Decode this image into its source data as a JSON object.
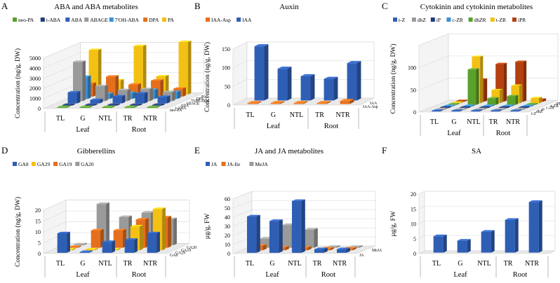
{
  "figure": {
    "panels": [
      {
        "letter": "A",
        "title": "ABA and ABA metabolites"
      },
      {
        "letter": "B",
        "title": "Auxin"
      },
      {
        "letter": "C",
        "title": "Cytokinin and cytokinin metabolites"
      },
      {
        "letter": "D",
        "title": "Gibberellins"
      },
      {
        "letter": "E",
        "title": "JA and JA metabolites"
      },
      {
        "letter": "F",
        "title": "SA"
      }
    ],
    "group_labels": {
      "leaf": "Leaf",
      "root": "Root"
    }
  },
  "chart_data": [
    {
      "id": "A",
      "type": "bar3d",
      "title": "ABA and ABA metabolites",
      "ylabel": "Concentration (ng/g, DW)",
      "yticks": [
        "0",
        "1000",
        "2000",
        "3000",
        "4000",
        "5000"
      ],
      "ylim": [
        0,
        5000
      ],
      "categories": [
        "TL",
        "G",
        "NTL",
        "TR",
        "NTR"
      ],
      "groups": [
        {
          "name": "Leaf",
          "categories": [
            "TL",
            "G",
            "NTL"
          ]
        },
        {
          "name": "Root",
          "categories": [
            "TR",
            "NTR"
          ]
        }
      ],
      "series": [
        {
          "name": "neo-PA",
          "color": "#5aa02c",
          "values": [
            30,
            30,
            30,
            30,
            30
          ]
        },
        {
          "name": "t-ABA",
          "color": "#1f3c7a",
          "values": [
            40,
            40,
            40,
            40,
            40
          ]
        },
        {
          "name": "ABA",
          "color": "#2f5fb5",
          "values": [
            1100,
            350,
            700,
            1000,
            650
          ]
        },
        {
          "name": "ABAGE",
          "color": "#9a9a9a",
          "values": [
            3900,
            1500,
            1100,
            1200,
            900
          ]
        },
        {
          "name": "7'OH-ABA",
          "color": "#3d8fd4",
          "values": [
            2200,
            500,
            600,
            900,
            700
          ]
        },
        {
          "name": "DPA",
          "color": "#e56f1c",
          "values": [
            1300,
            2000,
            1200,
            1600,
            800
          ]
        },
        {
          "name": "PA",
          "color": "#f3c014",
          "values": [
            4400,
            1400,
            4800,
            1800,
            5200
          ]
        }
      ],
      "depth_labels": [
        "PA",
        "DPA",
        "7'OH-ABA",
        "ABAGE",
        "ABA",
        "t-ABA",
        "neo-PA"
      ]
    },
    {
      "id": "B",
      "type": "bar3d",
      "title": "Auxin",
      "ylabel": "Concentration (ng/g, DW)",
      "yticks": [
        "0",
        "50",
        "100",
        "150"
      ],
      "ylim": [
        0,
        150
      ],
      "categories": [
        "TL",
        "G",
        "NTL",
        "TR",
        "NTR"
      ],
      "groups": [
        {
          "name": "Leaf",
          "categories": [
            "TL",
            "G",
            "NTL"
          ]
        },
        {
          "name": "Root",
          "categories": [
            "TR",
            "NTR"
          ]
        }
      ],
      "series": [
        {
          "name": "IAA-Asp",
          "color": "#e56f1c",
          "values": [
            0,
            0,
            0,
            0,
            8
          ]
        },
        {
          "name": "IAA",
          "color": "#2f5fb5",
          "values": [
            145,
            85,
            65,
            58,
            100
          ]
        }
      ],
      "depth_labels": [
        "IAA",
        "IAA-Asp"
      ]
    },
    {
      "id": "C",
      "type": "bar3d",
      "title": "Cytokinin and cytokinin metabolites",
      "ylabel": "Concentration (ng/g, DW)",
      "yticks": [
        "0",
        "50",
        "100"
      ],
      "ylim": [
        0,
        150
      ],
      "categories": [
        "TL",
        "G",
        "NTL",
        "TR",
        "NTR"
      ],
      "groups": [
        {
          "name": "Leaf",
          "categories": [
            "TL",
            "G",
            "NTL"
          ]
        },
        {
          "name": "Root",
          "categories": [
            "TR",
            "NTR"
          ]
        }
      ],
      "series": [
        {
          "name": "t-Z",
          "color": "#2f5fb5",
          "values": [
            1,
            1,
            1,
            2,
            2
          ]
        },
        {
          "name": "dhZ",
          "color": "#9a9a9a",
          "values": [
            1,
            1,
            1,
            1,
            1
          ]
        },
        {
          "name": "iP",
          "color": "#1f3c7a",
          "values": [
            1,
            1,
            1,
            2,
            1
          ]
        },
        {
          "name": "c-ZR",
          "color": "#3d8fd4",
          "values": [
            1,
            1,
            2,
            2,
            1
          ]
        },
        {
          "name": "dhZR",
          "color": "#5aa02c",
          "values": [
            1,
            80,
            15,
            20,
            2
          ]
        },
        {
          "name": "t-ZR",
          "color": "#f3c014",
          "values": [
            1,
            105,
            30,
            40,
            12
          ]
        },
        {
          "name": "iPR",
          "color": "#b5400f",
          "values": [
            1,
            50,
            85,
            90,
            5
          ]
        }
      ],
      "depth_labels": [
        "iPR",
        "t-ZR",
        "c-ZR",
        "iP",
        "dhZ",
        "t-Z"
      ]
    },
    {
      "id": "D",
      "type": "bar3d",
      "title": "Gibberellins",
      "ylabel": "Concentration (ng/g, DW)",
      "yticks": [
        "0",
        "5",
        "10",
        "15",
        "20"
      ],
      "ylim": [
        0,
        20
      ],
      "categories": [
        "TL",
        "G",
        "NTL",
        "TR",
        "NTR"
      ],
      "groups": [
        {
          "name": "Leaf",
          "categories": [
            "TL",
            "G",
            "NTL"
          ]
        },
        {
          "name": "Root",
          "categories": [
            "TR",
            "NTR"
          ]
        }
      ],
      "series": [
        {
          "name": "GA8",
          "color": "#2f5fb5",
          "values": [
            9,
            0,
            5,
            6,
            9
          ]
        },
        {
          "name": "GA29",
          "color": "#f3c014",
          "values": [
            0,
            0,
            0,
            11,
            19
          ]
        },
        {
          "name": "GA19",
          "color": "#e56f1c",
          "values": [
            0,
            8,
            8,
            13,
            14
          ]
        },
        {
          "name": "GA20",
          "color": "#9a9a9a",
          "values": [
            0,
            19,
            13,
            15,
            12
          ]
        }
      ],
      "depth_labels": [
        "GA20",
        "GA19",
        "GA29",
        "GA8"
      ]
    },
    {
      "id": "E",
      "type": "bar3d",
      "title": "JA and JA metabolites",
      "ylabel": "µg/g, FW",
      "yticks": [
        "0",
        "10",
        "20",
        "30",
        "40",
        "50",
        "60"
      ],
      "ylim": [
        0,
        60
      ],
      "categories": [
        "TL",
        "G",
        "NTL",
        "TR",
        "NTR"
      ],
      "groups": [
        {
          "name": "Leaf",
          "categories": [
            "TL",
            "G",
            "NTL"
          ]
        },
        {
          "name": "Root",
          "categories": [
            "TR",
            "NTR"
          ]
        }
      ],
      "series": [
        {
          "name": "JA",
          "color": "#2f5fb5",
          "values": [
            40,
            35,
            57,
            4,
            4
          ]
        },
        {
          "name": "JA-Ile",
          "color": "#e56f1c",
          "values": [
            5,
            3,
            3,
            2,
            2
          ]
        },
        {
          "name": "MeJA",
          "color": "#9a9a9a",
          "values": [
            10,
            25,
            20,
            1,
            1
          ]
        }
      ],
      "depth_labels": [
        "MeJA",
        "JA"
      ]
    },
    {
      "id": "F",
      "type": "bar3d",
      "title": "SA",
      "ylabel": "µg/g, FW",
      "yticks": [
        "0",
        "5",
        "10",
        "15",
        "20"
      ],
      "ylim": [
        0,
        20
      ],
      "categories": [
        "TL",
        "G",
        "NTL",
        "TR",
        "NTR"
      ],
      "groups": [
        {
          "name": "Leaf",
          "categories": [
            "TL",
            "G",
            "NTL"
          ]
        },
        {
          "name": "Root",
          "categories": [
            "TR",
            "NTR"
          ]
        }
      ],
      "series": [
        {
          "name": "SA",
          "color": "#2f5fb5",
          "values": [
            5.5,
            4,
            7,
            11,
            17
          ]
        }
      ],
      "depth_labels": []
    }
  ]
}
